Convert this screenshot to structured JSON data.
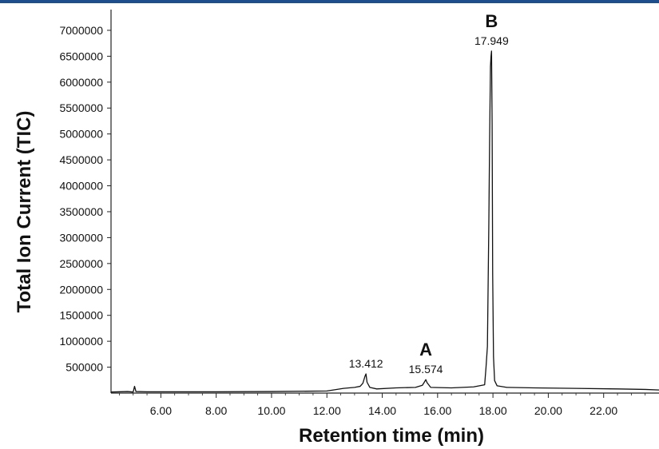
{
  "chart_data": {
    "type": "line",
    "xlabel": "Retention time (min)",
    "ylabel": "Total Ion Current (TIC)",
    "xlim": [
      4.2,
      24.0
    ],
    "ylim": [
      0,
      7400000
    ],
    "x_ticks": [
      6.0,
      8.0,
      10.0,
      12.0,
      14.0,
      16.0,
      18.0,
      20.0,
      22.0
    ],
    "x_tick_labels": [
      "6.00",
      "8.00",
      "10.00",
      "12.00",
      "14.00",
      "16.00",
      "18.00",
      "20.00",
      "22.00"
    ],
    "y_ticks": [
      500000,
      1000000,
      1500000,
      2000000,
      2500000,
      3000000,
      3500000,
      4000000,
      4500000,
      5000000,
      5500000,
      6000000,
      6500000,
      7000000
    ],
    "y_tick_labels": [
      "500000",
      "1000000",
      "1500000",
      "2000000",
      "2500000",
      "3000000",
      "3500000",
      "4000000",
      "4500000",
      "5000000",
      "5500000",
      "6000000",
      "6500000",
      "7000000"
    ],
    "grid": false,
    "series": [
      {
        "x": [
          4.2,
          4.8,
          5.0,
          5.05,
          5.1,
          5.5,
          6.5,
          8.0,
          10.0,
          12.0,
          12.6,
          13.0,
          13.2,
          13.3,
          13.38,
          13.412,
          13.45,
          13.55,
          13.8,
          14.5,
          15.2,
          15.45,
          15.52,
          15.574,
          15.62,
          15.75,
          16.5,
          17.3,
          17.7,
          17.75,
          17.8,
          17.85,
          17.88,
          17.91,
          17.93,
          17.949,
          17.97,
          17.99,
          18.02,
          18.06,
          18.15,
          18.5,
          19.5,
          21.0,
          22.5,
          23.5,
          24.0
        ],
        "y": [
          20000,
          30000,
          20000,
          130000,
          30000,
          25000,
          25000,
          25000,
          30000,
          40000,
          90000,
          110000,
          130000,
          190000,
          330000,
          370000,
          210000,
          110000,
          80000,
          100000,
          110000,
          150000,
          210000,
          260000,
          200000,
          110000,
          100000,
          120000,
          160000,
          500000,
          900000,
          3200000,
          4900000,
          6300000,
          6500000,
          6600000,
          5200000,
          2300000,
          700000,
          240000,
          140000,
          110000,
          100000,
          90000,
          80000,
          70000,
          60000
        ]
      }
    ],
    "peak_labels": [
      {
        "x": 13.412,
        "y": 370000,
        "text": "13.412"
      },
      {
        "x": 15.574,
        "y": 260000,
        "text": "15.574"
      },
      {
        "x": 17.949,
        "y": 6600000,
        "text": "17.949"
      }
    ],
    "annotations": [
      {
        "x": 15.574,
        "text": "A"
      },
      {
        "x": 17.949,
        "text": "B"
      }
    ]
  }
}
